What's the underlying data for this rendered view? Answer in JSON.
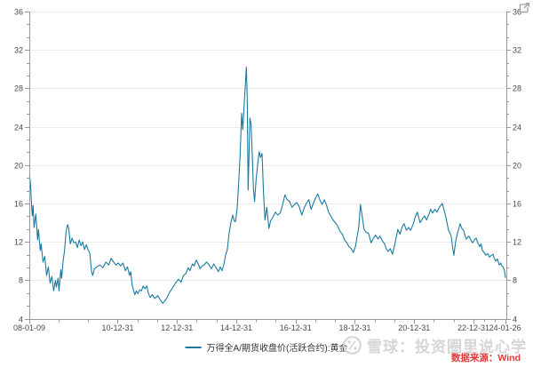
{
  "chart_data": {
    "type": "line",
    "title": "",
    "xlabel": "",
    "ylabel": "",
    "ylim": [
      4,
      36
    ],
    "y_ticks": [
      4,
      8,
      12,
      16,
      20,
      24,
      28,
      32,
      36
    ],
    "y_axis_sides": "both",
    "grid": "horizontal-major-only",
    "legend_position": "bottom-center",
    "x_range_years": [
      2008.02,
      2024.11
    ],
    "x_tick_labels": [
      "08-01-09",
      "10-12-31",
      "12-12-31",
      "14-12-31",
      "16-12-31",
      "18-12-31",
      "20-12-31",
      "22-12-31",
      "24-01-26"
    ],
    "x_tick_positions_years": [
      2008.02,
      2011.0,
      2013.0,
      2015.0,
      2017.0,
      2019.0,
      2021.0,
      2023.0,
      2024.07
    ],
    "series": [
      {
        "name": "万得全A/期货收盘价(活跃合约):黄金",
        "color": "#1b7aa1",
        "points": [
          [
            2008.03,
            18.9
          ],
          [
            2008.06,
            18.1
          ],
          [
            2008.09,
            16.3
          ],
          [
            2008.12,
            14.7
          ],
          [
            2008.15,
            15.8
          ],
          [
            2008.18,
            13.5
          ],
          [
            2008.24,
            14.9
          ],
          [
            2008.3,
            12.2
          ],
          [
            2008.33,
            13.3
          ],
          [
            2008.39,
            11.1
          ],
          [
            2008.42,
            11.8
          ],
          [
            2008.48,
            9.9
          ],
          [
            2008.54,
            10.5
          ],
          [
            2008.6,
            8.5
          ],
          [
            2008.66,
            9.4
          ],
          [
            2008.72,
            7.7
          ],
          [
            2008.78,
            8.4
          ],
          [
            2008.84,
            6.9
          ],
          [
            2008.9,
            8.0
          ],
          [
            2008.93,
            7.3
          ],
          [
            2008.99,
            8.2
          ],
          [
            2009.02,
            6.9
          ],
          [
            2009.05,
            8.0
          ],
          [
            2009.08,
            9.1
          ],
          [
            2009.11,
            8.2
          ],
          [
            2009.16,
            10.0
          ],
          [
            2009.21,
            11.1
          ],
          [
            2009.26,
            13.1
          ],
          [
            2009.31,
            13.8
          ],
          [
            2009.35,
            13.4
          ],
          [
            2009.4,
            11.8
          ],
          [
            2009.46,
            12.4
          ],
          [
            2009.52,
            11.9
          ],
          [
            2009.58,
            12.0
          ],
          [
            2009.64,
            11.4
          ],
          [
            2009.7,
            12.2
          ],
          [
            2009.76,
            11.6
          ],
          [
            2009.82,
            12.0
          ],
          [
            2009.88,
            11.2
          ],
          [
            2009.94,
            11.7
          ],
          [
            2010.0,
            11.2
          ],
          [
            2010.06,
            10.8
          ],
          [
            2010.12,
            8.9
          ],
          [
            2010.16,
            8.5
          ],
          [
            2010.22,
            9.2
          ],
          [
            2010.3,
            9.4
          ],
          [
            2010.4,
            9.6
          ],
          [
            2010.5,
            9.3
          ],
          [
            2010.6,
            9.9
          ],
          [
            2010.7,
            9.6
          ],
          [
            2010.78,
            10.3
          ],
          [
            2010.86,
            9.9
          ],
          [
            2010.94,
            9.6
          ],
          [
            2011.02,
            9.8
          ],
          [
            2011.1,
            9.5
          ],
          [
            2011.18,
            9.8
          ],
          [
            2011.26,
            9.0
          ],
          [
            2011.33,
            9.4
          ],
          [
            2011.4,
            8.5
          ],
          [
            2011.44,
            8.9
          ],
          [
            2011.49,
            7.5
          ],
          [
            2011.54,
            6.9
          ],
          [
            2011.58,
            6.5
          ],
          [
            2011.63,
            6.9
          ],
          [
            2011.68,
            6.6
          ],
          [
            2011.74,
            7.0
          ],
          [
            2011.8,
            6.9
          ],
          [
            2011.86,
            7.4
          ],
          [
            2011.92,
            7.1
          ],
          [
            2011.98,
            7.4
          ],
          [
            2012.04,
            6.6
          ],
          [
            2012.1,
            6.2
          ],
          [
            2012.17,
            6.5
          ],
          [
            2012.25,
            6.1
          ],
          [
            2012.35,
            6.4
          ],
          [
            2012.45,
            5.9
          ],
          [
            2012.52,
            5.6
          ],
          [
            2012.6,
            5.9
          ],
          [
            2012.67,
            6.2
          ],
          [
            2012.76,
            6.8
          ],
          [
            2012.85,
            7.2
          ],
          [
            2012.95,
            7.7
          ],
          [
            2013.05,
            8.1
          ],
          [
            2013.14,
            7.8
          ],
          [
            2013.22,
            8.5
          ],
          [
            2013.3,
            8.7
          ],
          [
            2013.38,
            9.3
          ],
          [
            2013.44,
            9.0
          ],
          [
            2013.52,
            9.7
          ],
          [
            2013.58,
            9.5
          ],
          [
            2013.65,
            10.1
          ],
          [
            2013.72,
            9.7
          ],
          [
            2013.78,
            9.2
          ],
          [
            2013.85,
            9.5
          ],
          [
            2013.92,
            9.6
          ],
          [
            2014.0,
            9.9
          ],
          [
            2014.08,
            9.6
          ],
          [
            2014.16,
            9.2
          ],
          [
            2014.24,
            9.7
          ],
          [
            2014.32,
            9.3
          ],
          [
            2014.4,
            8.9
          ],
          [
            2014.46,
            9.4
          ],
          [
            2014.52,
            9.0
          ],
          [
            2014.58,
            9.6
          ],
          [
            2014.64,
            10.6
          ],
          [
            2014.7,
            11.2
          ],
          [
            2014.76,
            12.9
          ],
          [
            2014.82,
            14.0
          ],
          [
            2014.88,
            14.8
          ],
          [
            2014.93,
            14.2
          ],
          [
            2014.97,
            14.1
          ],
          [
            2015.03,
            15.5
          ],
          [
            2015.08,
            18.0
          ],
          [
            2015.13,
            21.0
          ],
          [
            2015.18,
            25.4
          ],
          [
            2015.22,
            23.7
          ],
          [
            2015.27,
            26.5
          ],
          [
            2015.31,
            28.5
          ],
          [
            2015.34,
            30.2
          ],
          [
            2015.37,
            27.0
          ],
          [
            2015.4,
            17.4
          ],
          [
            2015.43,
            21.0
          ],
          [
            2015.46,
            24.9
          ],
          [
            2015.5,
            24.3
          ],
          [
            2015.54,
            21.0
          ],
          [
            2015.58,
            17.5
          ],
          [
            2015.62,
            16.2
          ],
          [
            2015.67,
            18.5
          ],
          [
            2015.72,
            20.0
          ],
          [
            2015.77,
            21.4
          ],
          [
            2015.82,
            20.8
          ],
          [
            2015.87,
            21.2
          ],
          [
            2015.92,
            17.0
          ],
          [
            2015.97,
            14.3
          ],
          [
            2016.03,
            15.6
          ],
          [
            2016.1,
            13.4
          ],
          [
            2016.16,
            14.2
          ],
          [
            2016.24,
            14.6
          ],
          [
            2016.32,
            15.1
          ],
          [
            2016.4,
            14.8
          ],
          [
            2016.48,
            15.0
          ],
          [
            2016.56,
            15.8
          ],
          [
            2016.64,
            16.9
          ],
          [
            2016.72,
            16.4
          ],
          [
            2016.8,
            16.2
          ],
          [
            2016.88,
            15.6
          ],
          [
            2016.96,
            15.9
          ],
          [
            2017.04,
            16.1
          ],
          [
            2017.12,
            15.7
          ],
          [
            2017.21,
            14.8
          ],
          [
            2017.3,
            15.6
          ],
          [
            2017.38,
            16.1
          ],
          [
            2017.45,
            16.4
          ],
          [
            2017.52,
            15.4
          ],
          [
            2017.6,
            16.0
          ],
          [
            2017.68,
            16.6
          ],
          [
            2017.75,
            17.0
          ],
          [
            2017.83,
            16.3
          ],
          [
            2017.9,
            15.9
          ],
          [
            2017.97,
            16.4
          ],
          [
            2018.05,
            15.8
          ],
          [
            2018.11,
            15.1
          ],
          [
            2018.19,
            14.7
          ],
          [
            2018.26,
            14.3
          ],
          [
            2018.34,
            14.0
          ],
          [
            2018.41,
            13.7
          ],
          [
            2018.5,
            13.1
          ],
          [
            2018.58,
            12.8
          ],
          [
            2018.65,
            12.2
          ],
          [
            2018.73,
            11.9
          ],
          [
            2018.8,
            11.5
          ],
          [
            2018.88,
            11.3
          ],
          [
            2018.95,
            10.9
          ],
          [
            2019.02,
            11.5
          ],
          [
            2019.08,
            12.6
          ],
          [
            2019.13,
            13.5
          ],
          [
            2019.19,
            15.9
          ],
          [
            2019.25,
            14.6
          ],
          [
            2019.31,
            13.3
          ],
          [
            2019.38,
            13.0
          ],
          [
            2019.46,
            12.9
          ],
          [
            2019.55,
            11.9
          ],
          [
            2019.63,
            12.4
          ],
          [
            2019.7,
            12.7
          ],
          [
            2019.78,
            12.3
          ],
          [
            2019.85,
            12.6
          ],
          [
            2019.93,
            12.1
          ],
          [
            2020.0,
            11.8
          ],
          [
            2020.06,
            11.3
          ],
          [
            2020.12,
            11.0
          ],
          [
            2020.19,
            11.3
          ],
          [
            2020.27,
            10.7
          ],
          [
            2020.36,
            11.9
          ],
          [
            2020.45,
            13.3
          ],
          [
            2020.52,
            12.8
          ],
          [
            2020.6,
            13.6
          ],
          [
            2020.66,
            13.9
          ],
          [
            2020.74,
            13.2
          ],
          [
            2020.81,
            13.5
          ],
          [
            2020.88,
            13.2
          ],
          [
            2020.96,
            13.8
          ],
          [
            2021.04,
            14.6
          ],
          [
            2021.11,
            15.1
          ],
          [
            2021.2,
            14.0
          ],
          [
            2021.28,
            14.4
          ],
          [
            2021.35,
            14.7
          ],
          [
            2021.42,
            14.3
          ],
          [
            2021.5,
            14.9
          ],
          [
            2021.56,
            15.4
          ],
          [
            2021.62,
            15.0
          ],
          [
            2021.7,
            15.4
          ],
          [
            2021.77,
            15.1
          ],
          [
            2021.85,
            15.6
          ],
          [
            2021.95,
            16.0
          ],
          [
            2022.02,
            15.2
          ],
          [
            2022.07,
            14.6
          ],
          [
            2022.12,
            13.8
          ],
          [
            2022.16,
            13.2
          ],
          [
            2022.21,
            12.9
          ],
          [
            2022.25,
            12.6
          ],
          [
            2022.3,
            11.4
          ],
          [
            2022.34,
            10.6
          ],
          [
            2022.4,
            12.0
          ],
          [
            2022.46,
            12.9
          ],
          [
            2022.52,
            13.5
          ],
          [
            2022.55,
            13.9
          ],
          [
            2022.61,
            13.4
          ],
          [
            2022.67,
            13.2
          ],
          [
            2022.72,
            12.6
          ],
          [
            2022.76,
            12.3
          ],
          [
            2022.81,
            12.5
          ],
          [
            2022.85,
            12.6
          ],
          [
            2022.91,
            12.2
          ],
          [
            2022.97,
            11.9
          ],
          [
            2023.03,
            12.2
          ],
          [
            2023.09,
            12.4
          ],
          [
            2023.15,
            11.9
          ],
          [
            2023.21,
            11.5
          ],
          [
            2023.26,
            11.8
          ],
          [
            2023.3,
            11.1
          ],
          [
            2023.36,
            10.9
          ],
          [
            2023.42,
            10.6
          ],
          [
            2023.48,
            10.8
          ],
          [
            2023.54,
            10.4
          ],
          [
            2023.6,
            10.6
          ],
          [
            2023.66,
            10.7
          ],
          [
            2023.7,
            10.3
          ],
          [
            2023.75,
            10.0
          ],
          [
            2023.81,
            10.2
          ],
          [
            2023.87,
            9.6
          ],
          [
            2023.92,
            9.8
          ],
          [
            2023.96,
            9.5
          ],
          [
            2024.0,
            9.4
          ],
          [
            2024.04,
            9.1
          ],
          [
            2024.08,
            8.3
          ]
        ]
      }
    ]
  },
  "legend": {
    "label": "万得全A/期货收盘价(活跃合约):黄金"
  },
  "watermark": {
    "text": "雪球：投资圈里说心学",
    "logo_icon": "xueqiu-snowball-logo"
  },
  "footer": {
    "source": "数据来源：Wind"
  },
  "icons": {
    "top_right": "external-link-icon"
  },
  "colors": {
    "line": "#1b7aa1",
    "grid": "#ececec",
    "axis": "#999999",
    "tick_label": "#4a4a4a",
    "legend_text": "#333333",
    "watermark": "#d6d6d6",
    "source": "#e03a3a",
    "icon": "#9a9a9a",
    "background": "#ffffff"
  }
}
